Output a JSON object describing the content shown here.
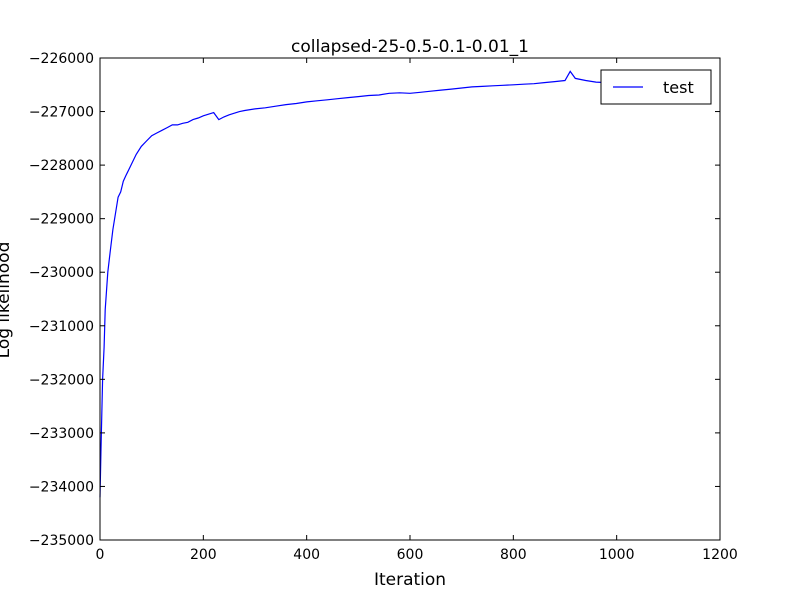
{
  "chart_data": {
    "type": "line",
    "title": "collapsed-25-0.5-0.1-0.01_1",
    "xlabel": "Iteration",
    "ylabel": "Log likelihood",
    "xlim": [
      0,
      1200
    ],
    "ylim": [
      -235000,
      -226000
    ],
    "xticks": [
      0,
      200,
      400,
      600,
      800,
      1000,
      1200
    ],
    "yticks": [
      -235000,
      -234000,
      -233000,
      -232000,
      -231000,
      -230000,
      -229000,
      -228000,
      -227000,
      -226000
    ],
    "xtick_labels": [
      "0",
      "200",
      "400",
      "600",
      "800",
      "1000",
      "1200"
    ],
    "ytick_labels": [
      "−235000",
      "−234000",
      "−233000",
      "−232000",
      "−231000",
      "−230000",
      "−229000",
      "−228000",
      "−227000",
      "−226000"
    ],
    "grid": false,
    "legend": {
      "position": "top-right",
      "entries": [
        "test"
      ]
    },
    "series": [
      {
        "name": "test",
        "color": "#0000ff",
        "x": [
          0,
          2,
          5,
          8,
          10,
          15,
          20,
          25,
          30,
          35,
          40,
          45,
          50,
          60,
          70,
          80,
          90,
          100,
          110,
          120,
          130,
          140,
          150,
          160,
          170,
          180,
          190,
          200,
          210,
          220,
          230,
          240,
          250,
          260,
          270,
          280,
          300,
          320,
          340,
          360,
          380,
          400,
          420,
          440,
          460,
          480,
          500,
          520,
          540,
          560,
          580,
          600,
          620,
          640,
          660,
          680,
          700,
          720,
          740,
          760,
          780,
          800,
          820,
          840,
          860,
          880,
          900,
          910,
          920,
          940,
          960,
          980,
          1000
        ],
        "y": [
          -234200,
          -233300,
          -232000,
          -231400,
          -230700,
          -230000,
          -229600,
          -229200,
          -228900,
          -228600,
          -228500,
          -228300,
          -228200,
          -228000,
          -227800,
          -227650,
          -227550,
          -227450,
          -227400,
          -227350,
          -227300,
          -227250,
          -227250,
          -227220,
          -227200,
          -227150,
          -227120,
          -227080,
          -227050,
          -227020,
          -227150,
          -227100,
          -227060,
          -227030,
          -227000,
          -226980,
          -226950,
          -226930,
          -226900,
          -226870,
          -226850,
          -226820,
          -226800,
          -226780,
          -226760,
          -226740,
          -226720,
          -226700,
          -226690,
          -226660,
          -226650,
          -226660,
          -226640,
          -226620,
          -226600,
          -226580,
          -226560,
          -226540,
          -226530,
          -226520,
          -226510,
          -226500,
          -226490,
          -226480,
          -226460,
          -226440,
          -226420,
          -226250,
          -226380,
          -226420,
          -226450,
          -226460,
          -226470
        ]
      }
    ]
  }
}
